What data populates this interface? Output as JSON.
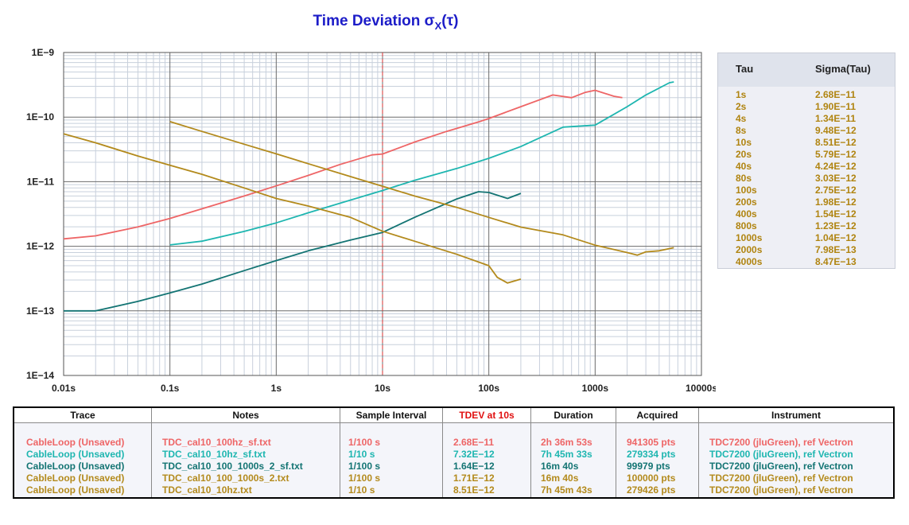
{
  "title": {
    "main": "Time Deviation σ",
    "sub": "X",
    "suffix": "(τ)"
  },
  "colors": {
    "title": "#1c1cc8",
    "trace1": "#ee6566",
    "trace2": "#1eb6b0",
    "trace3": "#137473",
    "trace4": "#b38a1c",
    "trace5": "#b38a1c",
    "grid_major": "#6b6b6b",
    "grid_minor": "#c8d0dc",
    "marker": "#d83030",
    "tdev_header": "#e01010"
  },
  "chart_data": {
    "type": "line",
    "title": "Time Deviation σX(τ)",
    "xscale": "log",
    "yscale": "log",
    "xlim": [
      0.01,
      10000
    ],
    "ylim": [
      1e-14,
      1e-09
    ],
    "grid": true,
    "x_tick_labels": [
      "0.01s",
      "0.1s",
      "1s",
      "10s",
      "100s",
      "1000s",
      "10000s"
    ],
    "y_tick_labels": [
      "1E−9",
      "1E−10",
      "1E−11",
      "1E−12",
      "1E−13",
      "1E−14"
    ],
    "marker_line": {
      "x": 10
    },
    "series": [
      {
        "name": "TDC_cal10_100hz_sf.txt",
        "color": "#ee6566",
        "x": [
          0.01,
          0.02,
          0.05,
          0.1,
          0.2,
          0.5,
          1,
          2,
          4,
          8,
          10,
          20,
          40,
          80,
          100,
          200,
          400,
          600,
          800,
          1000,
          1500,
          1800
        ],
        "y": [
          1.3e-12,
          1.45e-12,
          2e-12,
          2.7e-12,
          3.8e-12,
          6e-12,
          8.6e-12,
          1.25e-11,
          1.85e-11,
          2.6e-11,
          2.68e-11,
          4.1e-11,
          6e-11,
          8.4e-11,
          9.5e-11,
          1.45e-10,
          2.2e-10,
          2e-10,
          2.4e-10,
          2.6e-10,
          2.1e-10,
          2e-10
        ]
      },
      {
        "name": "TDC_cal10_10hz_sf.txt",
        "color": "#1eb6b0",
        "x": [
          0.1,
          0.2,
          0.5,
          1,
          2,
          5,
          10,
          20,
          50,
          100,
          200,
          500,
          1000,
          2000,
          3000,
          5000,
          5500
        ],
        "y": [
          1.05e-12,
          1.2e-12,
          1.7e-12,
          2.3e-12,
          3.3e-12,
          5.2e-12,
          7.3e-12,
          1.05e-11,
          1.6e-11,
          2.3e-11,
          3.5e-11,
          7e-11,
          7.5e-11,
          1.45e-10,
          2.2e-10,
          3.4e-10,
          3.5e-10
        ]
      },
      {
        "name": "TDC_cal10_100_1000s_2_sf.txt",
        "color": "#137473",
        "x": [
          0.01,
          0.02,
          0.05,
          0.1,
          0.2,
          0.5,
          1,
          2,
          5,
          10,
          20,
          50,
          80,
          100,
          150,
          200
        ],
        "y": [
          1e-13,
          1e-13,
          1.4e-13,
          1.9e-13,
          2.6e-13,
          4.2e-13,
          6e-13,
          8.5e-13,
          1.25e-12,
          1.64e-12,
          2.8e-12,
          5.4e-12,
          7e-12,
          6.8e-12,
          5.5e-12,
          6.6e-12
        ]
      },
      {
        "name": "TDC_cal10_100_1000s_2.txt",
        "color": "#b38a1c",
        "x": [
          0.01,
          0.02,
          0.05,
          0.1,
          0.2,
          0.5,
          1,
          2,
          5,
          10,
          20,
          50,
          100,
          120,
          150,
          200
        ],
        "y": [
          5.5e-11,
          4e-11,
          2.5e-11,
          1.8e-11,
          1.3e-11,
          8e-12,
          5.5e-12,
          4.2e-12,
          2.8e-12,
          1.71e-12,
          1.2e-12,
          7.5e-13,
          5e-13,
          3.3e-13,
          2.7e-13,
          3.1e-13
        ]
      },
      {
        "name": "TDC_cal10_10hz.txt",
        "color": "#b38a1c",
        "x": [
          0.1,
          0.2,
          0.5,
          1,
          2,
          5,
          10,
          20,
          50,
          100,
          200,
          500,
          1000,
          2000,
          2500,
          3000,
          4000,
          5500
        ],
        "y": [
          8.5e-11,
          6e-11,
          3.8e-11,
          2.7e-11,
          1.9e-11,
          1.2e-11,
          8.51e-12,
          6e-12,
          4e-12,
          2.8e-12,
          1.98e-12,
          1.5e-12,
          1.04e-12,
          8e-13,
          7.3e-13,
          8.2e-13,
          8.5e-13,
          9.5e-13
        ]
      }
    ]
  },
  "tau_table": {
    "header_tau": "Tau",
    "header_sigma": "Sigma(Tau)",
    "rows": [
      {
        "tau": "1s",
        "sigma": "2.68E−11"
      },
      {
        "tau": "2s",
        "sigma": "1.90E−11"
      },
      {
        "tau": "4s",
        "sigma": "1.34E−11"
      },
      {
        "tau": "8s",
        "sigma": "9.48E−12"
      },
      {
        "tau": "10s",
        "sigma": "8.51E−12"
      },
      {
        "tau": "20s",
        "sigma": "5.79E−12"
      },
      {
        "tau": "40s",
        "sigma": "4.24E−12"
      },
      {
        "tau": "80s",
        "sigma": "3.03E−12"
      },
      {
        "tau": "100s",
        "sigma": "2.75E−12"
      },
      {
        "tau": "200s",
        "sigma": "1.98E−12"
      },
      {
        "tau": "400s",
        "sigma": "1.54E−12"
      },
      {
        "tau": "800s",
        "sigma": "1.23E−12"
      },
      {
        "tau": "1000s",
        "sigma": "1.04E−12"
      },
      {
        "tau": "2000s",
        "sigma": "7.98E−13"
      },
      {
        "tau": "4000s",
        "sigma": "8.47E−13"
      }
    ]
  },
  "trace_table": {
    "headers": {
      "trace": "Trace",
      "notes": "Notes",
      "sample_interval": "Sample Interval",
      "tdev": "TDEV at 10s",
      "duration": "Duration",
      "acquired": "Acquired",
      "instrument": "Instrument"
    },
    "rows": [
      {
        "trace": "CableLoop (Unsaved)",
        "notes": "TDC_cal10_100hz_sf.txt",
        "sample_interval": "1/100 s",
        "tdev": "2.68E−11",
        "duration": "2h 36m 53s",
        "acquired": "941305 pts",
        "instrument": "TDC7200 (jluGreen), ref Vectron",
        "color": "#ee6566"
      },
      {
        "trace": "CableLoop (Unsaved)",
        "notes": "TDC_cal10_10hz_sf.txt",
        "sample_interval": "1/10 s",
        "tdev": "7.32E−12",
        "duration": "7h 45m 33s",
        "acquired": "279334 pts",
        "instrument": "TDC7200 (jluGreen), ref Vectron",
        "color": "#1eb6b0"
      },
      {
        "trace": "CableLoop (Unsaved)",
        "notes": "TDC_cal10_100_1000s_2_sf.txt",
        "sample_interval": "1/100 s",
        "tdev": "1.64E−12",
        "duration": "16m 40s",
        "acquired": "99979 pts",
        "instrument": "TDC7200 (jluGreen), ref Vectron",
        "color": "#137473"
      },
      {
        "trace": "CableLoop (Unsaved)",
        "notes": "TDC_cal10_100_1000s_2.txt",
        "sample_interval": "1/100 s",
        "tdev": "1.71E−12",
        "duration": "16m 40s",
        "acquired": "100000 pts",
        "instrument": "TDC7200 (jluGreen), ref Vectron",
        "color": "#b38a1c"
      },
      {
        "trace": "CableLoop (Unsaved)",
        "notes": "TDC_cal10_10hz.txt",
        "sample_interval": "1/10 s",
        "tdev": "8.51E−12",
        "duration": "7h 45m 43s",
        "acquired": "279426 pts",
        "instrument": "TDC7200 (jluGreen), ref Vectron",
        "color": "#b38a1c"
      }
    ]
  }
}
